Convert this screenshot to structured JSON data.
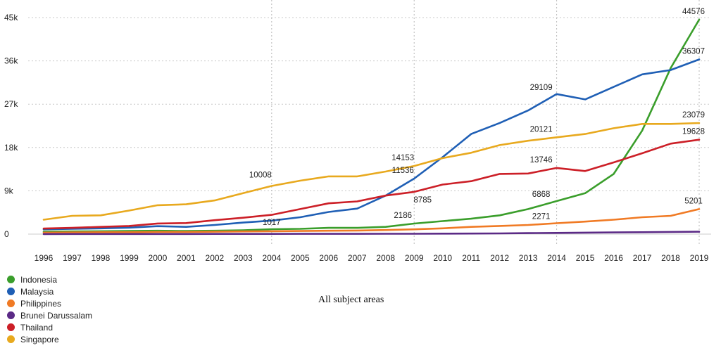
{
  "chart_data": {
    "type": "line",
    "title": "",
    "xlabel": "All subject areas",
    "ylabel": "",
    "ylim": [
      0,
      45000
    ],
    "y_ticks": [
      0,
      9000,
      18000,
      27000,
      36000,
      45000
    ],
    "y_tick_labels": [
      "0",
      "9k",
      "18k",
      "27k",
      "36k",
      "45k"
    ],
    "x": [
      "1996",
      "1997",
      "1998",
      "1999",
      "2000",
      "2001",
      "2002",
      "2003",
      "2004",
      "2005",
      "2006",
      "2007",
      "2008",
      "2009",
      "2010",
      "2011",
      "2012",
      "2013",
      "2014",
      "2015",
      "2016",
      "2017",
      "2018",
      "2019"
    ],
    "grid": "dotted vertical and horizontal",
    "legend_position": "bottom-left",
    "series": [
      {
        "name": "Indonesia",
        "color": "#3a9e2b",
        "values": [
          500,
          550,
          600,
          650,
          700,
          650,
          700,
          800,
          1017,
          1100,
          1300,
          1300,
          1500,
          2186,
          2700,
          3200,
          3900,
          5200,
          6868,
          8500,
          12500,
          21500,
          34500,
          44576
        ],
        "labels": [
          {
            "year": "2004",
            "text": "1017"
          },
          {
            "year": "2009",
            "text": "2186"
          },
          {
            "year": "2014",
            "text": "6868"
          },
          {
            "year": "2019",
            "text": "44576"
          }
        ]
      },
      {
        "name": "Malaysia",
        "color": "#1f5fb5",
        "values": [
          1000,
          1100,
          1200,
          1350,
          1650,
          1500,
          1900,
          2400,
          2800,
          3500,
          4600,
          5300,
          8000,
          11536,
          16000,
          20800,
          23100,
          25700,
          29109,
          28000,
          30600,
          33200,
          34100,
          36307
        ],
        "labels": [
          {
            "year": "2009",
            "text": "11536"
          },
          {
            "year": "2014",
            "text": "29109"
          },
          {
            "year": "2019",
            "text": "36307"
          }
        ]
      },
      {
        "name": "Philippines",
        "color": "#f07a24",
        "values": [
          300,
          350,
          400,
          400,
          450,
          450,
          500,
          550,
          600,
          650,
          700,
          750,
          850,
          1000,
          1200,
          1500,
          1700,
          1900,
          2271,
          2600,
          3000,
          3500,
          3800,
          5201
        ],
        "labels": [
          {
            "year": "2014",
            "text": "2271"
          },
          {
            "year": "2019",
            "text": "5201"
          }
        ]
      },
      {
        "name": "Brunei Darussalam",
        "color": "#5b2a86",
        "values": [
          20,
          25,
          30,
          30,
          35,
          35,
          40,
          45,
          50,
          55,
          60,
          65,
          70,
          80,
          100,
          120,
          150,
          200,
          250,
          300,
          350,
          400,
          450,
          500
        ],
        "labels": []
      },
      {
        "name": "Thailand",
        "color": "#cc1f27",
        "values": [
          1150,
          1300,
          1500,
          1700,
          2200,
          2300,
          2900,
          3400,
          4000,
          5200,
          6400,
          6800,
          8000,
          8785,
          10300,
          11000,
          12500,
          12600,
          13746,
          13100,
          14900,
          16800,
          18800,
          19628
        ],
        "labels": [
          {
            "year": "2009",
            "text": "8785"
          },
          {
            "year": "2014",
            "text": "13746"
          },
          {
            "year": "2019",
            "text": "19628"
          }
        ]
      },
      {
        "name": "Singapore",
        "color": "#e8a91e",
        "values": [
          3000,
          3800,
          3900,
          4900,
          6000,
          6200,
          7000,
          8500,
          10008,
          11100,
          12000,
          12000,
          13000,
          14153,
          15800,
          16900,
          18500,
          19400,
          20121,
          20800,
          22000,
          22900,
          22900,
          23079
        ],
        "labels": [
          {
            "year": "2004",
            "text": "10008"
          },
          {
            "year": "2009",
            "text": "14153"
          },
          {
            "year": "2014",
            "text": "20121"
          },
          {
            "year": "2019",
            "text": "23079"
          }
        ]
      }
    ]
  }
}
